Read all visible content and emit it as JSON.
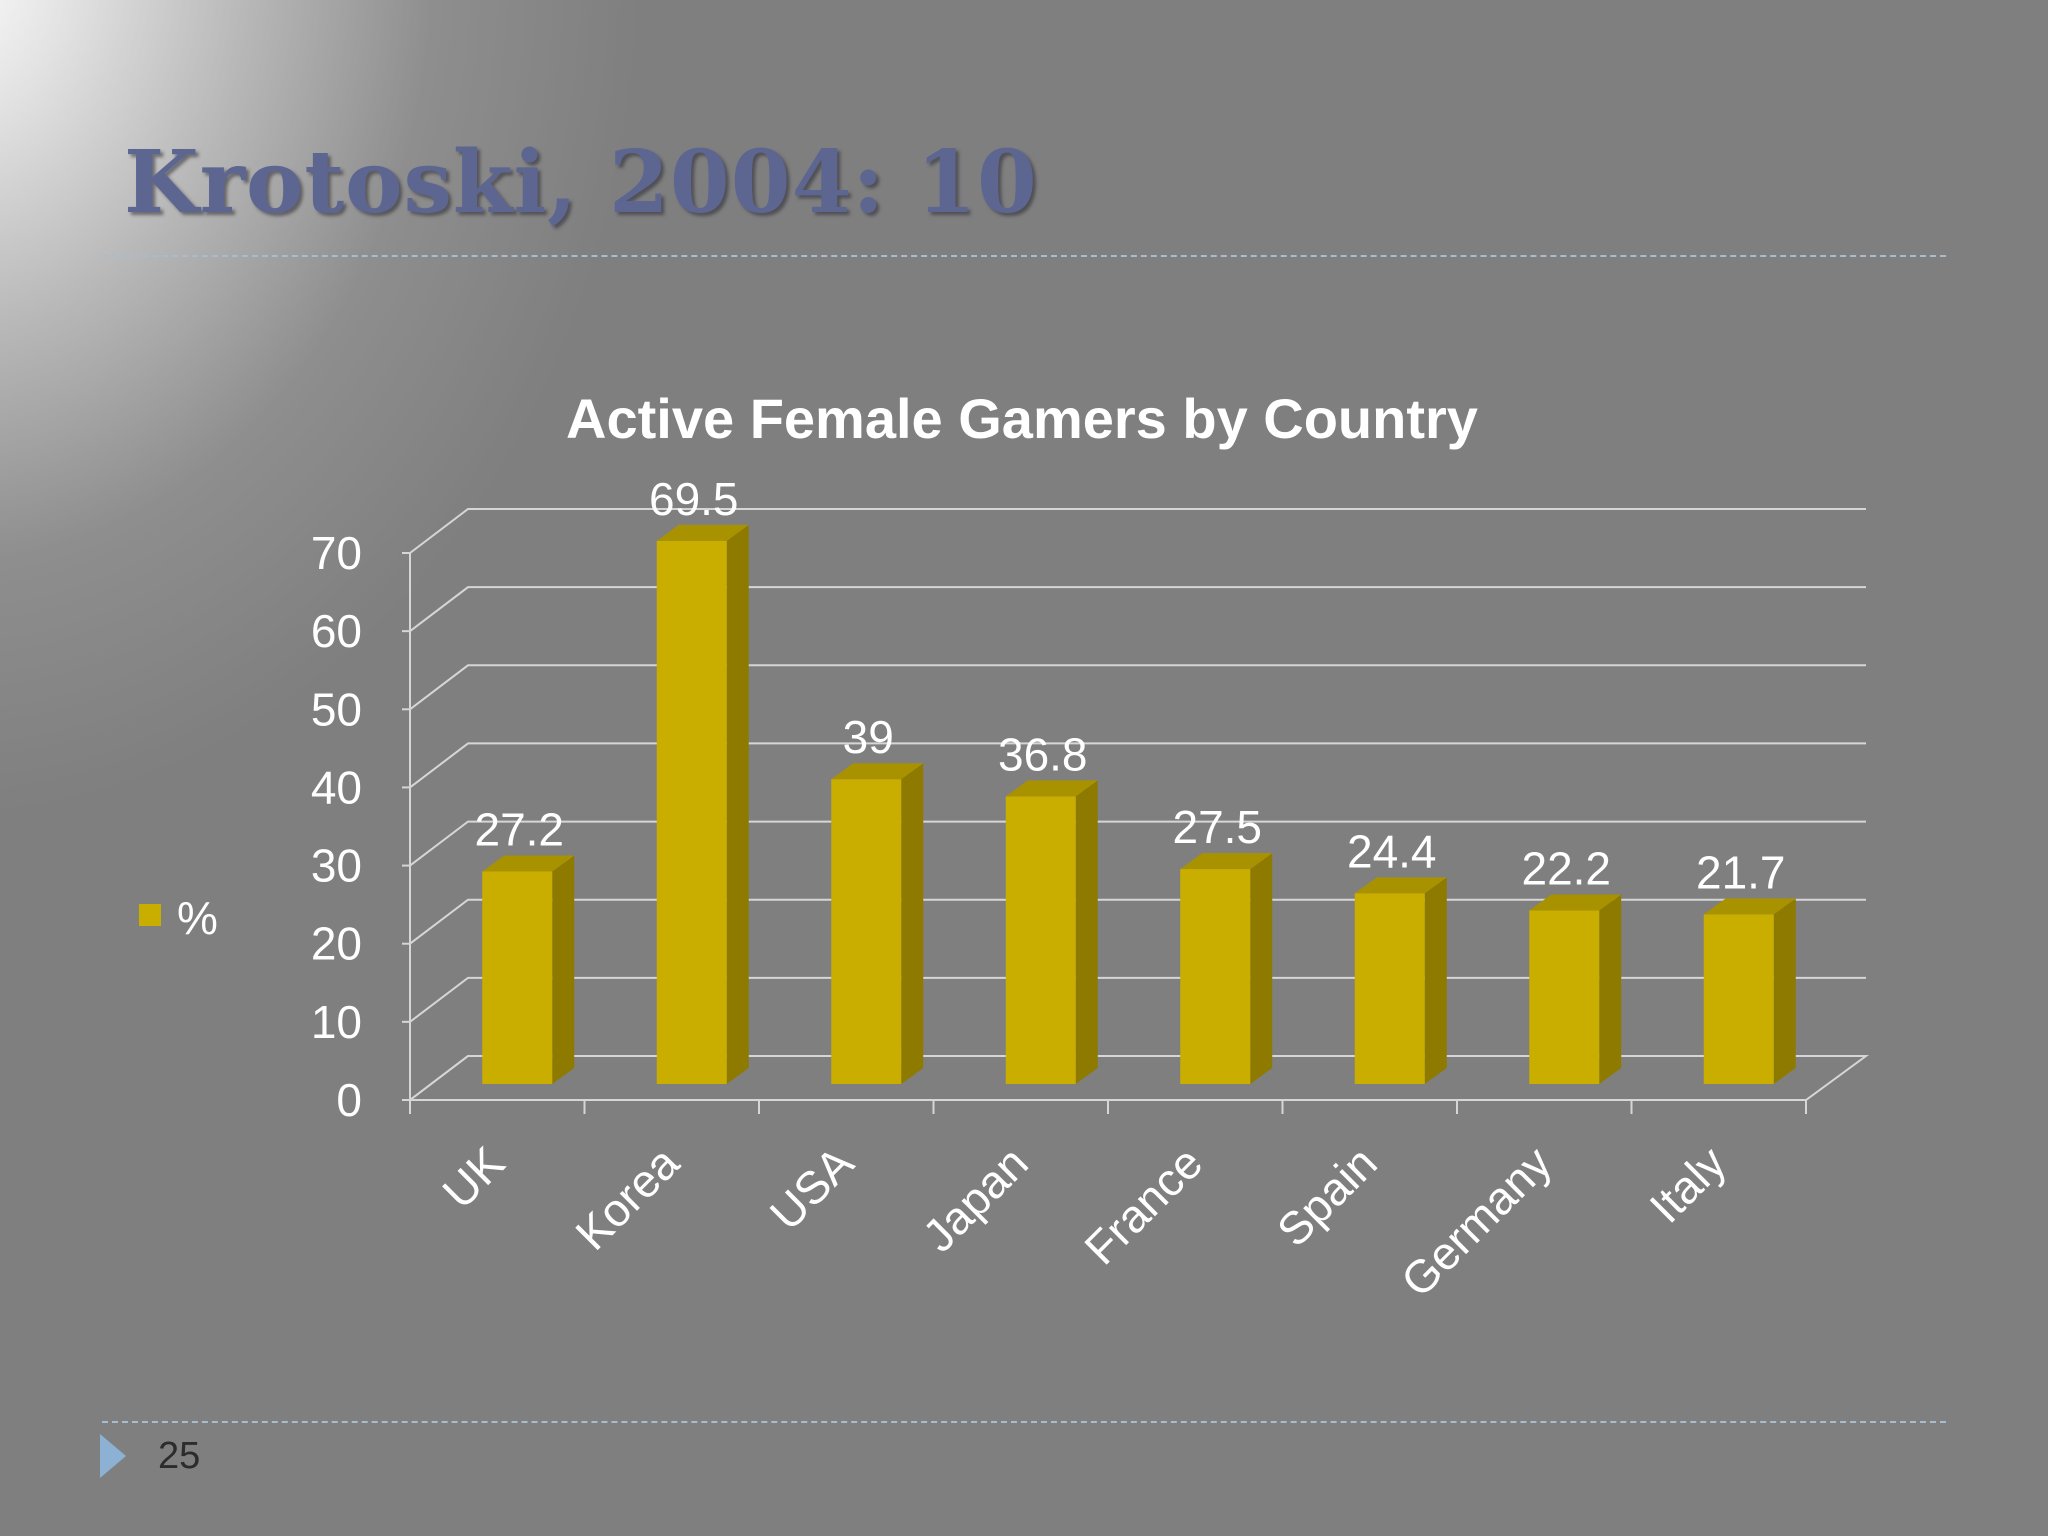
{
  "slide": {
    "title": "Krotoski, 2004: 10",
    "page_number": "25"
  },
  "colors": {
    "bar_front": "#c9ae00",
    "bar_side": "#8f7a00",
    "bar_top": "#a99200",
    "grid": "#d6d6d6",
    "text": "#ffffff",
    "title": "#5c6690"
  },
  "chart_data": {
    "type": "bar",
    "title": "Active Female Gamers by Country",
    "categories": [
      "UK",
      "Korea",
      "USA",
      "Japan",
      "France",
      "Spain",
      "Germany",
      "Italy"
    ],
    "series": [
      {
        "name": "%",
        "values": [
          27.2,
          69.5,
          39,
          36.8,
          27.5,
          24.4,
          22.2,
          21.7
        ]
      }
    ],
    "data_labels": [
      "27.2",
      "69.5",
      "39",
      "36.8",
      "27.5",
      "24.4",
      "22.2",
      "21.7"
    ],
    "y_ticks": [
      "0",
      "10",
      "20",
      "30",
      "40",
      "50",
      "60",
      "70"
    ],
    "ylim": [
      0,
      70
    ],
    "y_step": 10,
    "grid": true,
    "legend": {
      "label": "%",
      "position": "left"
    },
    "xlabel": "",
    "ylabel": ""
  }
}
